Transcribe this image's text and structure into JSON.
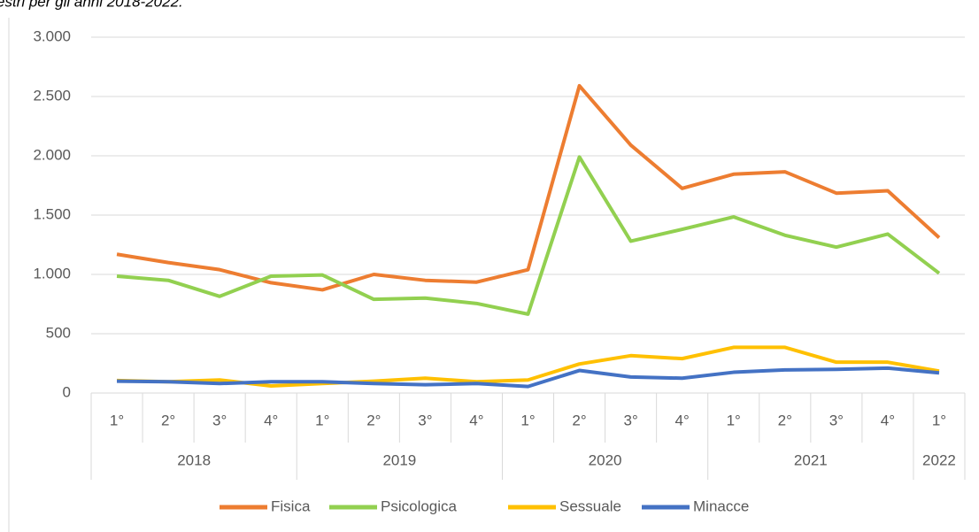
{
  "chart_data": {
    "type": "line",
    "subtitle": "estri per gli anni 2018-2022.",
    "categories": [
      "1°",
      "2°",
      "3°",
      "4°",
      "1°",
      "2°",
      "3°",
      "4°",
      "1°",
      "2°",
      "3°",
      "4°",
      "1°",
      "2°",
      "3°",
      "4°",
      "1°"
    ],
    "years": [
      "2018",
      "2018",
      "2018",
      "2018",
      "2019",
      "2019",
      "2019",
      "2019",
      "2020",
      "2020",
      "2020",
      "2020",
      "2021",
      "2021",
      "2021",
      "2021",
      "2022"
    ],
    "series": [
      {
        "name": "Fisica",
        "color": "#ed7d31",
        "values": [
          1170,
          1100,
          1040,
          930,
          870,
          1000,
          950,
          935,
          1040,
          2590,
          2090,
          1725,
          1845,
          1865,
          1685,
          1705,
          1310
        ]
      },
      {
        "name": "Psicologica",
        "color": "#92d050",
        "values": [
          985,
          950,
          815,
          985,
          995,
          790,
          800,
          755,
          665,
          1990,
          1280,
          1380,
          1485,
          1330,
          1230,
          1340,
          1010
        ]
      },
      {
        "name": "Sessuale",
        "color": "#ffc000",
        "values": [
          105,
          95,
          110,
          60,
          80,
          100,
          125,
          95,
          110,
          245,
          315,
          290,
          385,
          385,
          260,
          260,
          185
        ]
      },
      {
        "name": "Minacce",
        "color": "#4472c4",
        "values": [
          100,
          95,
          80,
          95,
          95,
          80,
          70,
          80,
          55,
          190,
          135,
          125,
          175,
          195,
          200,
          210,
          170
        ]
      }
    ],
    "ylim": [
      0,
      3000
    ],
    "yticks": [
      0,
      500,
      {
        "value": 1000,
        "label": "1.000"
      },
      {
        "value": 1500,
        "label": "1.500"
      },
      {
        "value": 2000,
        "label": "2.000"
      },
      {
        "value": 2500,
        "label": "2.500"
      },
      {
        "value": 3000,
        "label": "3.000"
      }
    ],
    "grid": true,
    "legend": "bottom"
  }
}
